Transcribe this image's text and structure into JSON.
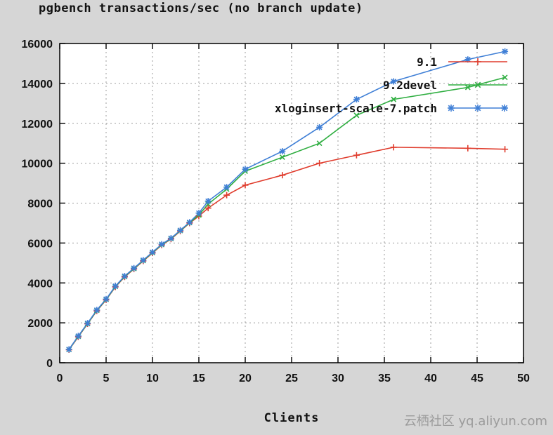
{
  "page": {
    "watermark": "云栖社区 yq.aliyun.com"
  },
  "chart_data": {
    "type": "line",
    "title": "pgbench transactions/sec (no branch update)",
    "xlabel": "Clients",
    "ylabel": "",
    "xlim": [
      0,
      50
    ],
    "ylim": [
      0,
      16000
    ],
    "xticks": [
      0,
      5,
      10,
      15,
      20,
      25,
      30,
      35,
      40,
      45,
      50
    ],
    "yticks": [
      0,
      2000,
      4000,
      6000,
      8000,
      10000,
      12000,
      14000,
      16000
    ],
    "grid": true,
    "legend_position": "top-right-inside",
    "background": "#d6d6d6",
    "plot_background": "#ffffff",
    "x": [
      1,
      2,
      3,
      4,
      5,
      6,
      7,
      8,
      9,
      10,
      11,
      12,
      13,
      14,
      15,
      16,
      18,
      20,
      24,
      28,
      32,
      36,
      44,
      48
    ],
    "series": [
      {
        "name": "9.1",
        "color": "#e03c2d",
        "marker": "plus",
        "values": [
          650,
          1300,
          1950,
          2600,
          3150,
          3800,
          4300,
          4700,
          5100,
          5500,
          5900,
          6200,
          6600,
          7000,
          7350,
          7750,
          8400,
          8900,
          9400,
          10000,
          10400,
          10800,
          10750,
          10700
        ]
      },
      {
        "name": "9.2devel",
        "color": "#2fae41",
        "marker": "cross",
        "values": [
          660,
          1320,
          1960,
          2620,
          3170,
          3820,
          4320,
          4720,
          5120,
          5520,
          5920,
          6220,
          6620,
          7020,
          7400,
          7950,
          8700,
          9600,
          10300,
          11000,
          12400,
          13200,
          13800,
          14300
        ]
      },
      {
        "name": "xloginsert-scale-7.patch",
        "color": "#3f7fd6",
        "marker": "star",
        "values": [
          670,
          1340,
          1980,
          2640,
          3190,
          3840,
          4340,
          4740,
          5140,
          5540,
          5940,
          6240,
          6640,
          7040,
          7500,
          8100,
          8800,
          9700,
          10600,
          11800,
          13200,
          14100,
          15200,
          15600
        ]
      }
    ]
  }
}
